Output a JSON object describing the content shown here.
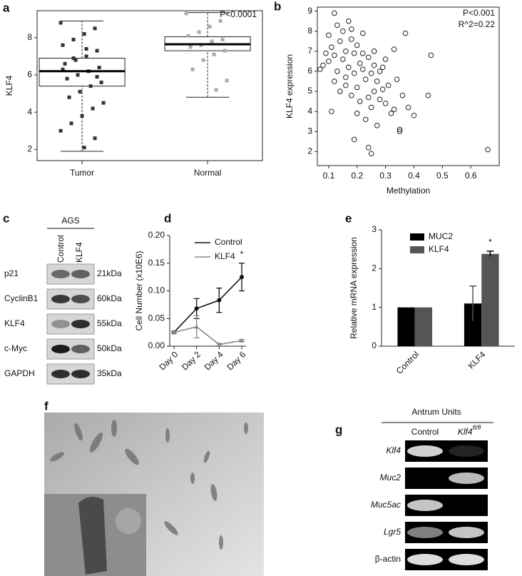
{
  "chart_data": [
    {
      "type": "box",
      "panel": "a",
      "y_label": "KLF4",
      "annotations": [
        "P<0.0001"
      ],
      "categories": [
        "Tumor",
        "Normal"
      ],
      "colors": [
        "#333333",
        "#aaaaaa"
      ],
      "boxes": [
        {
          "min": 1.9,
          "q1": 5.4,
          "median": 6.2,
          "q3": 6.9,
          "max": 8.9
        },
        {
          "min": 4.8,
          "q1": 7.3,
          "median": 7.65,
          "q3": 8.05,
          "max": 9.35
        }
      ],
      "points": [
        [
          8.8,
          8.5,
          8.2,
          7.9,
          7.6,
          7.3,
          7.0,
          6.8,
          6.6,
          6.4,
          6.2,
          6.0,
          5.8,
          5.6,
          5.4,
          5.1,
          4.8,
          4.5,
          4.2,
          3.8,
          3.4,
          3.0,
          2.6,
          2.1,
          6.9,
          6.3,
          5.9,
          7.4
        ],
        [
          9.3,
          8.9,
          8.6,
          8.3,
          8.1,
          7.9,
          7.8,
          7.6,
          7.5,
          7.3,
          7.1,
          6.8,
          6.3,
          5.7,
          5.2
        ]
      ],
      "ylim": [
        1.4,
        9.45
      ],
      "yticks": [
        2,
        4,
        6,
        8
      ]
    },
    {
      "type": "scatter",
      "panel": "b",
      "x_label": "Methylation",
      "y_label": "KLF4 expression",
      "annotations": [
        "P<0.001",
        "R^2=0.22"
      ],
      "color": "#222222",
      "x": [
        0.07,
        0.08,
        0.09,
        0.1,
        0.1,
        0.11,
        0.11,
        0.12,
        0.12,
        0.13,
        0.13,
        0.14,
        0.14,
        0.15,
        0.15,
        0.16,
        0.16,
        0.17,
        0.17,
        0.18,
        0.18,
        0.19,
        0.19,
        0.2,
        0.2,
        0.21,
        0.21,
        0.22,
        0.22,
        0.23,
        0.23,
        0.24,
        0.24,
        0.25,
        0.25,
        0.26,
        0.26,
        0.27,
        0.27,
        0.28,
        0.28,
        0.29,
        0.3,
        0.3,
        0.31,
        0.32,
        0.33,
        0.34,
        0.35,
        0.36,
        0.37,
        0.38,
        0.4,
        0.45,
        0.46,
        0.66,
        0.12,
        0.18,
        0.2,
        0.24,
        0.16,
        0.22,
        0.26,
        0.29,
        0.33,
        0.35,
        0.25,
        0.19
      ],
      "y": [
        6.1,
        6.3,
        6.9,
        7.8,
        6.5,
        4.0,
        7.2,
        5.5,
        6.8,
        8.3,
        6.0,
        7.5,
        5.0,
        8.0,
        6.6,
        7.0,
        5.7,
        8.5,
        6.2,
        7.6,
        4.8,
        6.9,
        5.9,
        7.3,
        5.2,
        6.4,
        4.5,
        7.9,
        6.1,
        5.6,
        3.6,
        6.7,
        2.2,
        5.9,
        4.2,
        6.3,
        5.0,
        5.5,
        3.3,
        6.0,
        4.6,
        5.1,
        4.4,
        6.6,
        5.3,
        3.9,
        4.1,
        5.6,
        3.1,
        4.8,
        7.9,
        4.2,
        3.8,
        4.8,
        6.8,
        2.1,
        8.9,
        8.1,
        3.9,
        4.7,
        5.3,
        6.9,
        7.0,
        6.2,
        7.1,
        3.0,
        1.9,
        2.6
      ],
      "xlim": [
        0.06,
        0.7
      ],
      "xticks": [
        0.1,
        0.2,
        0.3,
        0.4,
        0.5,
        0.6
      ],
      "ylim": [
        1.3,
        9.2
      ],
      "yticks": [
        2,
        3,
        4,
        5,
        6,
        7,
        8,
        9
      ]
    },
    {
      "type": "line",
      "panel": "d",
      "y_label": "Cell Number (x10E6)",
      "annotations": [
        "*"
      ],
      "legend": "upper left",
      "categories": [
        "Day 0",
        "Day 2",
        "Day 4",
        "Day 6"
      ],
      "series": [
        {
          "name": "Control",
          "color": "#111111",
          "values": [
            0.025,
            0.068,
            0.083,
            0.125
          ],
          "errors": [
            0.002,
            0.018,
            0.022,
            0.025
          ]
        },
        {
          "name": "KLF4",
          "color": "#888888",
          "values": [
            0.025,
            0.035,
            0.003,
            0.01
          ],
          "errors": [
            0.002,
            0.02,
            0.002,
            0.002
          ]
        }
      ],
      "ylim": [
        0,
        0.2
      ],
      "yticks": [
        {
          "value": 0,
          "label": "0.00"
        },
        {
          "value": 0.05,
          "label": "0.05"
        },
        {
          "value": 0.1,
          "label": "0.10"
        },
        {
          "value": 0.15,
          "label": "0.15"
        },
        {
          "value": 0.2,
          "label": "0.20"
        }
      ]
    },
    {
      "type": "bar",
      "panel": "e",
      "y_label": "Relative mRNA expression",
      "annotations": [
        "*"
      ],
      "legend": "upper left",
      "categories": [
        "Control",
        "KLF4"
      ],
      "series": [
        {
          "name": "MUC2",
          "color": "#000000",
          "values": [
            1,
            1.1
          ],
          "errors": [
            null,
            0.45
          ]
        },
        {
          "name": "KLF4",
          "color": "#555555",
          "values": [
            1,
            2.38
          ],
          "errors": [
            null,
            0.07
          ]
        }
      ],
      "ylim": [
        0,
        3
      ],
      "yticks": [
        0,
        1,
        2,
        3
      ]
    }
  ],
  "blot": {
    "panel": "c",
    "cell_line": "AGS",
    "columns": [
      "Control",
      "KLF4"
    ],
    "rows": [
      {
        "protein": "p21",
        "size": "21kDa"
      },
      {
        "protein": "CyclinB1",
        "size": "60kDa"
      },
      {
        "protein": "KLF4",
        "size": "55kDa"
      },
      {
        "protein": "c-Myc",
        "size": "50kDa"
      },
      {
        "protein": "GAPDH",
        "size": "35kDa"
      }
    ]
  },
  "microscopy": {
    "panel": "f"
  },
  "gel": {
    "panel": "g",
    "title": "Antrum Units",
    "columns": [
      {
        "text": "Control"
      },
      {
        "text": "Klf4",
        "sup": "fl/fl"
      }
    ],
    "rows": [
      "Klf4",
      "Muc2",
      "Muc5ac",
      "Lgr5",
      "β-actin"
    ]
  }
}
